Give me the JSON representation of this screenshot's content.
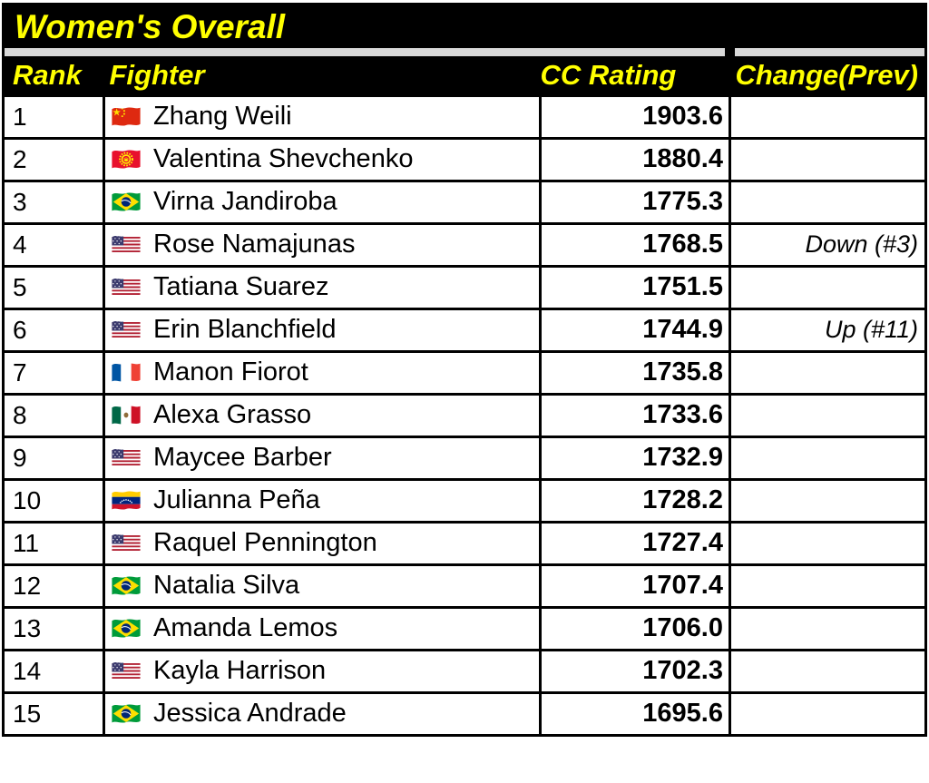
{
  "title": "Women's Overall",
  "columns": {
    "rank": "Rank",
    "fighter": "Fighter",
    "cc_rating": "CC Rating",
    "change": "Change(Prev)"
  },
  "colors": {
    "header_bg": "#000000",
    "header_text": "#FFFF00",
    "spacer_gray": "#D9D9D9",
    "row_bg": "#FFFFFF",
    "row_text": "#000000"
  },
  "flag_names": {
    "cn": "China",
    "kg": "Kyrgyzstan",
    "br": "Brazil",
    "us": "United States",
    "fr": "France",
    "mx": "Mexico",
    "ve": "Venezuela"
  },
  "rows": [
    {
      "rank": "1",
      "flag": "cn",
      "name": "Zhang Weili",
      "cc_rating": "1903.6",
      "change": ""
    },
    {
      "rank": "2",
      "flag": "kg",
      "name": "Valentina Shevchenko",
      "cc_rating": "1880.4",
      "change": ""
    },
    {
      "rank": "3",
      "flag": "br",
      "name": "Virna Jandiroba",
      "cc_rating": "1775.3",
      "change": ""
    },
    {
      "rank": "4",
      "flag": "us",
      "name": "Rose Namajunas",
      "cc_rating": "1768.5",
      "change": "Down (#3)"
    },
    {
      "rank": "5",
      "flag": "us",
      "name": "Tatiana Suarez",
      "cc_rating": "1751.5",
      "change": ""
    },
    {
      "rank": "6",
      "flag": "us",
      "name": "Erin Blanchfield",
      "cc_rating": "1744.9",
      "change": "Up (#11)"
    },
    {
      "rank": "7",
      "flag": "fr",
      "name": "Manon Fiorot",
      "cc_rating": "1735.8",
      "change": ""
    },
    {
      "rank": "8",
      "flag": "mx",
      "name": "Alexa Grasso",
      "cc_rating": "1733.6",
      "change": ""
    },
    {
      "rank": "9",
      "flag": "us",
      "name": "Maycee Barber",
      "cc_rating": "1732.9",
      "change": ""
    },
    {
      "rank": "10",
      "flag": "ve",
      "name": "Julianna Peña",
      "cc_rating": "1728.2",
      "change": ""
    },
    {
      "rank": "11",
      "flag": "us",
      "name": "Raquel Pennington",
      "cc_rating": "1727.4",
      "change": ""
    },
    {
      "rank": "12",
      "flag": "br",
      "name": "Natalia Silva",
      "cc_rating": "1707.4",
      "change": ""
    },
    {
      "rank": "13",
      "flag": "br",
      "name": "Amanda Lemos",
      "cc_rating": "1706.0",
      "change": ""
    },
    {
      "rank": "14",
      "flag": "us",
      "name": "Kayla Harrison",
      "cc_rating": "1702.3",
      "change": ""
    },
    {
      "rank": "15",
      "flag": "br",
      "name": "Jessica Andrade",
      "cc_rating": "1695.6",
      "change": ""
    }
  ]
}
